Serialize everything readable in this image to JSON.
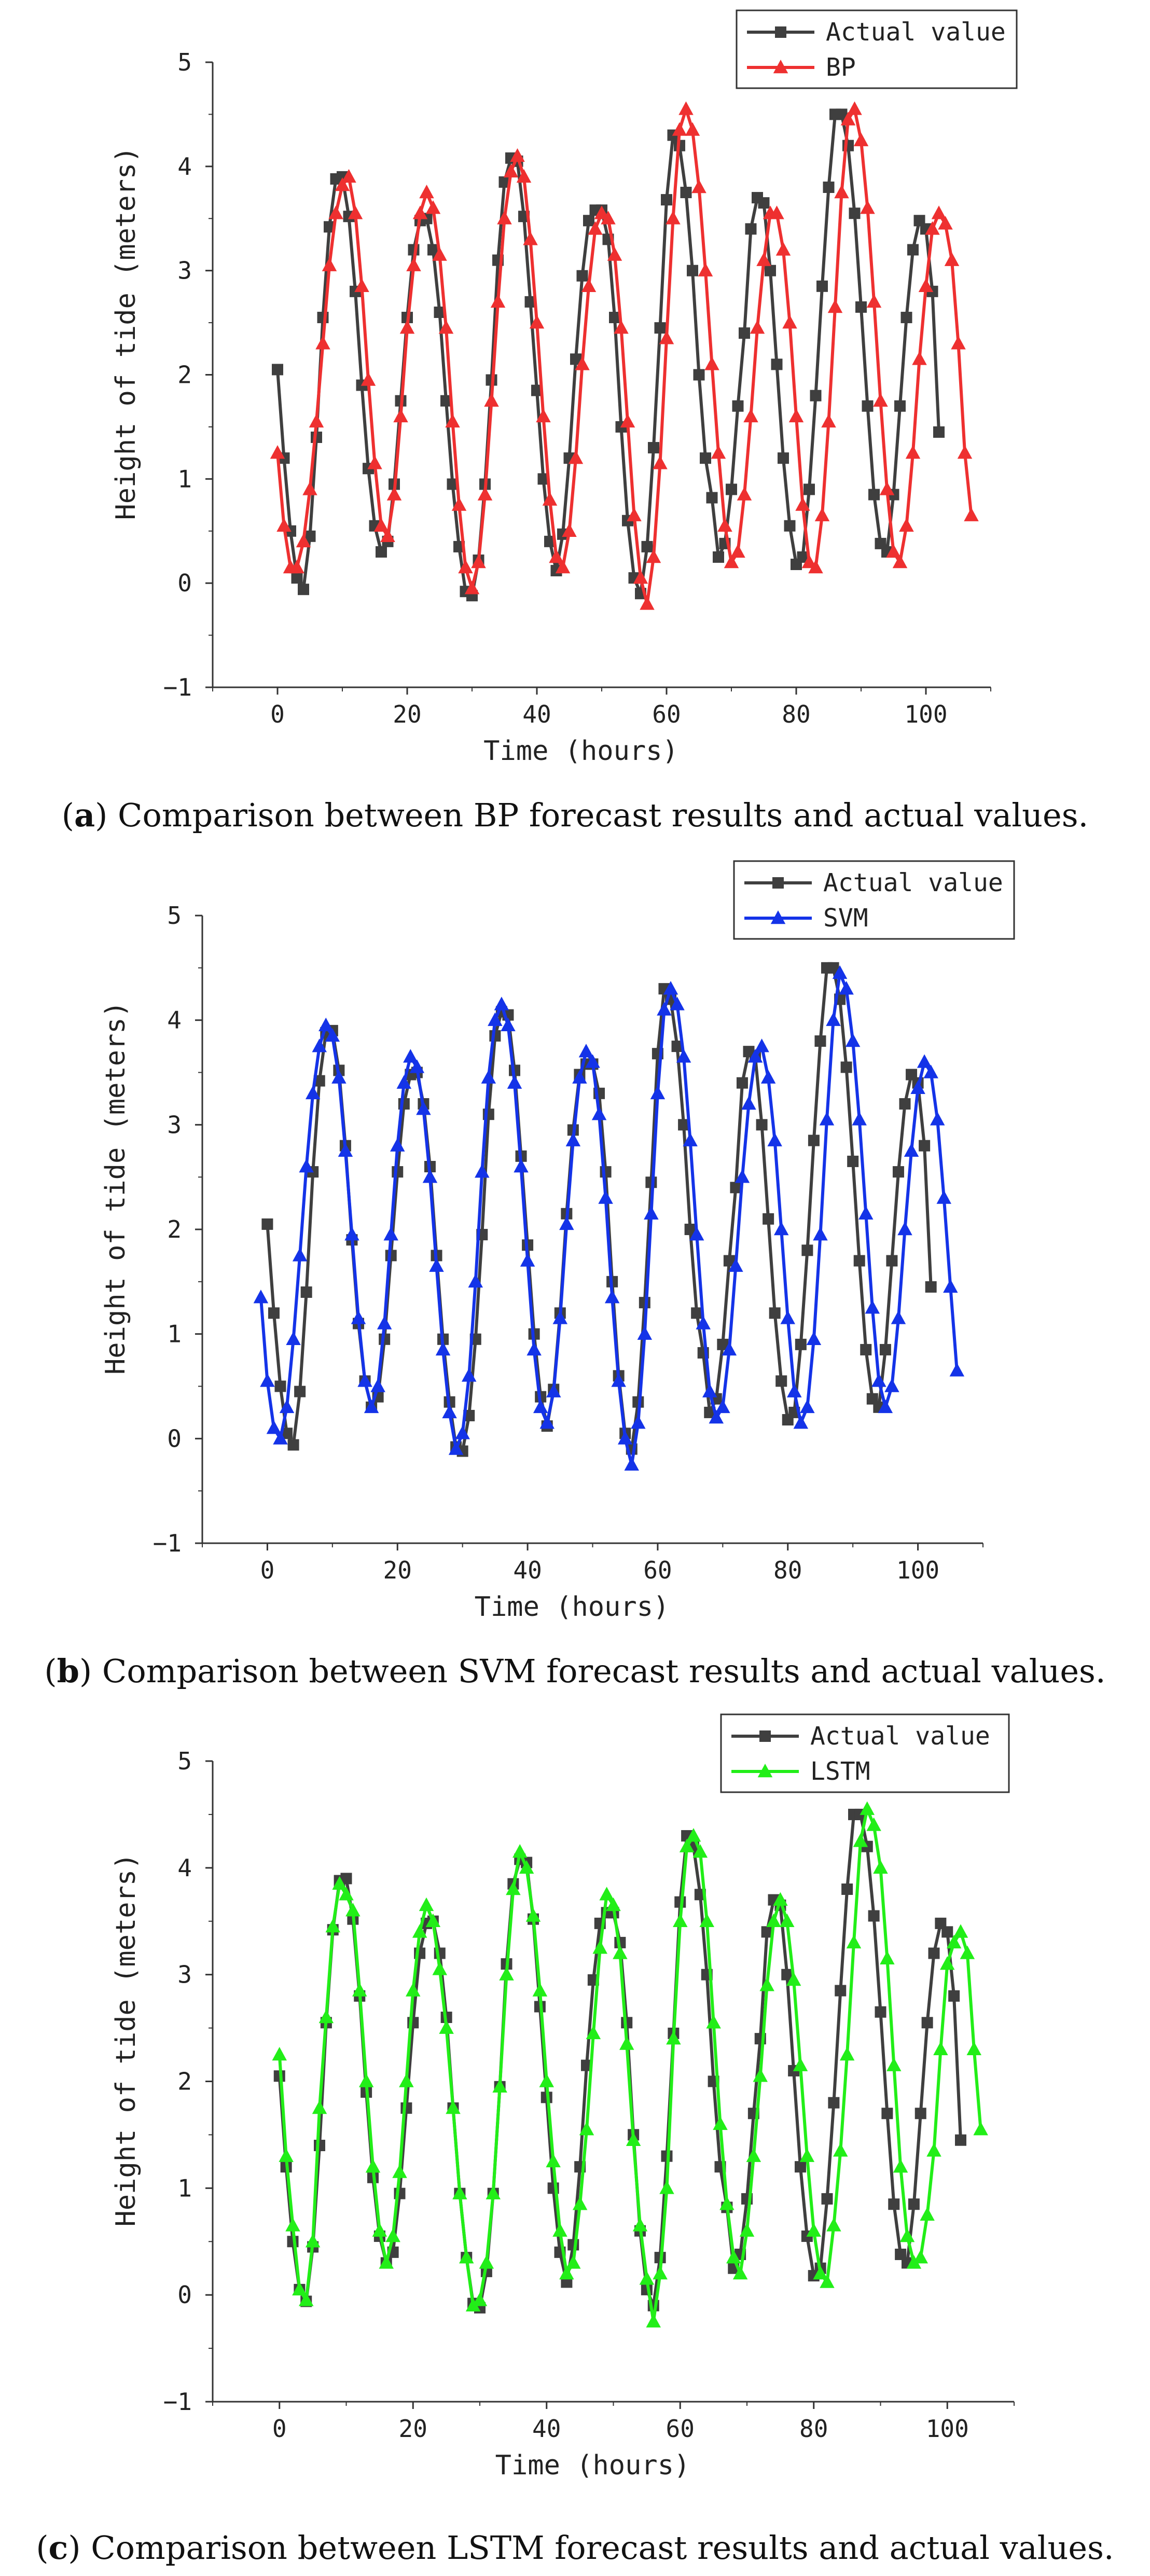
{
  "colors": {
    "actual": "#3f3f3f",
    "bp": "#ee3030",
    "svm": "#1433e8",
    "lstm": "#22ee18",
    "axis": "#333333"
  },
  "captions": [
    {
      "letter": "a",
      "text": " Comparison between BP forecast results and actual values."
    },
    {
      "letter": "b",
      "text": " Comparison between SVM forecast results and actual values."
    },
    {
      "letter": "c",
      "text": " Comparison between LSTM forecast results and actual values."
    }
  ],
  "chart_data": [
    {
      "type": "line",
      "xlabel": "Time (hours)",
      "ylabel": "Height of tide (meters)",
      "xlim": [
        -10,
        110
      ],
      "ylim": [
        -1,
        5
      ],
      "xticks": [
        0,
        20,
        40,
        60,
        80,
        100
      ],
      "yticks": [
        -1,
        0,
        1,
        2,
        3,
        4,
        5
      ],
      "legend": "top-right",
      "series": [
        {
          "name": "Actual value",
          "marker": "square",
          "color": "#3f3f3f",
          "x_start": 0,
          "x_step": 1,
          "values": [
            2.05,
            1.2,
            0.5,
            0.05,
            -0.06,
            0.45,
            1.4,
            2.55,
            3.42,
            3.88,
            3.9,
            3.52,
            2.8,
            1.9,
            1.1,
            0.55,
            0.3,
            0.4,
            0.95,
            1.75,
            2.55,
            3.2,
            3.48,
            3.5,
            3.2,
            2.6,
            1.75,
            0.95,
            0.35,
            -0.08,
            -0.12,
            0.22,
            0.95,
            1.95,
            3.1,
            3.85,
            4.08,
            4.05,
            3.52,
            2.7,
            1.85,
            1.0,
            0.4,
            0.12,
            0.47,
            1.2,
            2.15,
            2.95,
            3.48,
            3.58,
            3.58,
            3.3,
            2.55,
            1.5,
            0.6,
            0.05,
            -0.1,
            0.35,
            1.3,
            2.45,
            3.68,
            4.3,
            4.2,
            3.75,
            3.0,
            2.0,
            1.2,
            0.82,
            0.25,
            0.38,
            0.9,
            1.7,
            2.4,
            3.4,
            3.7,
            3.65,
            3.0,
            2.1,
            1.2,
            0.55,
            0.18,
            0.25,
            0.9,
            1.8,
            2.85,
            3.8,
            4.5,
            4.5,
            4.2,
            3.55,
            2.65,
            1.7,
            0.85,
            0.38,
            0.3,
            0.85,
            1.7,
            2.55,
            3.2,
            3.48,
            3.4,
            2.8,
            1.45
          ]
        },
        {
          "name": "BP",
          "marker": "triangle",
          "color": "#ee3030",
          "x_start": 0,
          "x_step": 1,
          "values": [
            1.25,
            0.55,
            0.15,
            0.15,
            0.4,
            0.9,
            1.55,
            2.3,
            3.05,
            3.55,
            3.82,
            3.9,
            3.55,
            2.85,
            1.95,
            1.15,
            0.55,
            0.45,
            0.85,
            1.6,
            2.45,
            3.05,
            3.55,
            3.75,
            3.6,
            3.15,
            2.45,
            1.55,
            0.75,
            0.15,
            -0.05,
            0.2,
            0.85,
            1.75,
            2.7,
            3.5,
            3.95,
            4.1,
            3.9,
            3.3,
            2.5,
            1.6,
            0.8,
            0.25,
            0.15,
            0.5,
            1.2,
            2.1,
            2.85,
            3.4,
            3.55,
            3.5,
            3.15,
            2.45,
            1.55,
            0.65,
            0.05,
            -0.2,
            0.25,
            1.15,
            2.35,
            3.5,
            4.35,
            4.55,
            4.35,
            3.8,
            3.0,
            2.1,
            1.25,
            0.55,
            0.2,
            0.3,
            0.85,
            1.6,
            2.45,
            3.1,
            3.55,
            3.55,
            3.2,
            2.5,
            1.6,
            0.75,
            0.2,
            0.15,
            0.65,
            1.55,
            2.65,
            3.75,
            4.45,
            4.55,
            4.25,
            3.6,
            2.7,
            1.75,
            0.9,
            0.3,
            0.2,
            0.55,
            1.25,
            2.15,
            2.85,
            3.4,
            3.55,
            3.45,
            3.1,
            2.3,
            1.25,
            0.65
          ]
        },
        {
          "name": "SVM",
          "marker": "triangle",
          "color": "#1433e8",
          "x_start": -1,
          "x_step": 1,
          "values": [
            1.35,
            0.55,
            0.1,
            0.0,
            0.3,
            0.95,
            1.75,
            2.6,
            3.3,
            3.75,
            3.95,
            3.85,
            3.45,
            2.75,
            1.95,
            1.15,
            0.55,
            0.3,
            0.5,
            1.1,
            1.95,
            2.8,
            3.4,
            3.65,
            3.55,
            3.15,
            2.5,
            1.65,
            0.85,
            0.25,
            -0.1,
            0.05,
            0.6,
            1.5,
            2.55,
            3.45,
            4.0,
            4.15,
            3.95,
            3.4,
            2.6,
            1.7,
            0.85,
            0.3,
            0.15,
            0.45,
            1.15,
            2.05,
            2.85,
            3.45,
            3.7,
            3.6,
            3.1,
            2.3,
            1.35,
            0.55,
            0.0,
            -0.25,
            0.15,
            1.0,
            2.15,
            3.3,
            4.1,
            4.3,
            4.15,
            3.65,
            2.85,
            1.95,
            1.1,
            0.45,
            0.2,
            0.3,
            0.85,
            1.65,
            2.5,
            3.2,
            3.65,
            3.75,
            3.45,
            2.85,
            2.0,
            1.15,
            0.45,
            0.15,
            0.3,
            0.95,
            1.95,
            3.05,
            4.0,
            4.45,
            4.3,
            3.8,
            3.05,
            2.15,
            1.25,
            0.55,
            0.3,
            0.5,
            1.15,
            2.0,
            2.75,
            3.35,
            3.6,
            3.5,
            3.05,
            2.3,
            1.45,
            0.65
          ]
        },
        {
          "name": "LSTM",
          "marker": "triangle",
          "color": "#22ee18",
          "x_start": 0,
          "x_step": 1,
          "values": [
            2.25,
            1.3,
            0.65,
            0.05,
            -0.05,
            0.5,
            1.75,
            2.6,
            3.45,
            3.85,
            3.75,
            3.6,
            2.85,
            2.0,
            1.2,
            0.6,
            0.3,
            0.55,
            1.15,
            2.0,
            2.85,
            3.4,
            3.65,
            3.5,
            3.05,
            2.5,
            1.75,
            0.95,
            0.35,
            -0.1,
            -0.05,
            0.3,
            0.95,
            1.95,
            3.0,
            3.8,
            4.15,
            4.0,
            3.55,
            2.85,
            2.0,
            1.25,
            0.6,
            0.2,
            0.3,
            0.85,
            1.55,
            2.45,
            3.25,
            3.75,
            3.65,
            3.2,
            2.35,
            1.45,
            0.65,
            0.15,
            -0.25,
            0.2,
            1.0,
            2.4,
            3.5,
            4.2,
            4.3,
            4.15,
            3.5,
            2.55,
            1.6,
            0.85,
            0.35,
            0.2,
            0.6,
            1.3,
            2.05,
            2.9,
            3.5,
            3.7,
            3.5,
            2.95,
            2.15,
            1.3,
            0.6,
            0.2,
            0.12,
            0.65,
            1.35,
            2.25,
            3.3,
            4.25,
            4.55,
            4.4,
            4.0,
            3.15,
            2.15,
            1.2,
            0.55,
            0.3,
            0.35,
            0.75,
            1.35,
            2.3,
            3.1,
            3.3,
            3.4,
            3.2,
            2.3,
            1.55
          ]
        }
      ]
    }
  ]
}
